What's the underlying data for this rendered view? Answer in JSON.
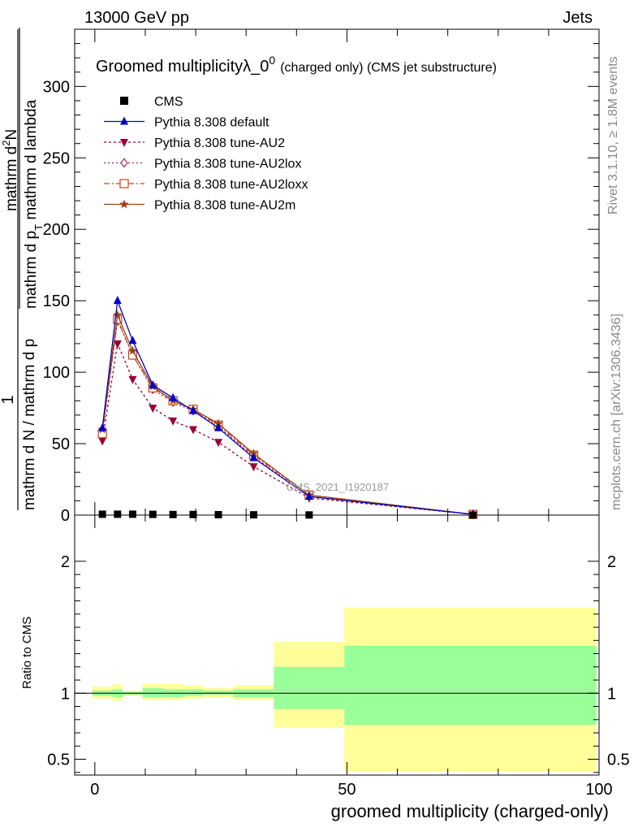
{
  "header": {
    "left": "13000 GeV pp",
    "right": "Jets"
  },
  "side_labels": {
    "rivet": "Rivet 3.1.10, ≥ 1.8M events",
    "mcplots": "mcplots.cern.ch [arXiv:1306.3436]"
  },
  "watermark": "CMS_2021_I1920187",
  "title": {
    "main": "Groomed multiplicityλ_0",
    "sup": "0",
    "extra": "(charged only) (CMS jet substructure)"
  },
  "ylabel_main": {
    "num1": "1",
    "den1": "mathrm d N / mathrm d p",
    "num2": "mathrm d",
    "num2_sup": "2",
    "num2_rest": "N",
    "den2": "mathrm d p",
    "den2_sub": "T",
    "den2_rest": " mathrm d lambda"
  },
  "xlabel": "groomed multiplicity (charged-only)",
  "ratio_ylabel": "Ratio to CMS",
  "colors": {
    "cms": "#000000",
    "default": "#0000cc",
    "au2": "#990033",
    "au2lox": "#aa2255",
    "au2loxx": "#cc4411",
    "au2m": "#994411",
    "band_yellow": "#ffff99",
    "band_green": "#99ff99"
  },
  "chart_data": {
    "type": "line",
    "main": {
      "xlim": [
        -4,
        100
      ],
      "ylim": [
        0,
        340
      ],
      "yticks": [
        0,
        50,
        100,
        150,
        200,
        250,
        300
      ],
      "x": [
        1.5,
        4.5,
        7.5,
        11.5,
        15.5,
        19.5,
        24.5,
        31.5,
        42.5,
        75.0
      ],
      "series": [
        {
          "name": "CMS",
          "key": "cms",
          "marker": "square",
          "dash": "none",
          "values": [
            0.6,
            0.6,
            0.6,
            0.5,
            0.4,
            0.4,
            0.3,
            0.2,
            0.1,
            0.0
          ]
        },
        {
          "name": "Pythia 8.308 default",
          "key": "default",
          "marker": "triangle-up",
          "dash": "none",
          "values": [
            61,
            150,
            122,
            91,
            82,
            73,
            61,
            40,
            13,
            0.5
          ]
        },
        {
          "name": "Pythia 8.308 tune-AU2",
          "key": "au2",
          "marker": "triangle-down",
          "dash": "3,3",
          "values": [
            52,
            120,
            95,
            75,
            66,
            60,
            51,
            34,
            12,
            0.5
          ]
        },
        {
          "name": "Pythia 8.308 tune-AU2lox",
          "key": "au2lox",
          "marker": "diamond-open",
          "dash": "2,3",
          "values": [
            59,
            136,
            112,
            88,
            79,
            73,
            62,
            41,
            13,
            0.5
          ]
        },
        {
          "name": "Pythia 8.308 tune-AU2loxx",
          "key": "au2loxx",
          "marker": "square-open",
          "dash": "7,3,2,3",
          "values": [
            57,
            137,
            112,
            89,
            80,
            74,
            63,
            42,
            14,
            0.5
          ]
        },
        {
          "name": "Pythia 8.308 tune-AU2m",
          "key": "au2m",
          "marker": "star",
          "dash": "none",
          "values": [
            60,
            140,
            115,
            90,
            80,
            74,
            64,
            43,
            14,
            0.5
          ]
        }
      ]
    },
    "ratio": {
      "xlim": [
        -4,
        100
      ],
      "ylim": [
        0.38,
        2.35
      ],
      "yticks": [
        0.5,
        1,
        2
      ],
      "bins": [
        {
          "lo": -0.5,
          "hi": 3.5,
          "yellow": [
            0.96,
            1.05
          ],
          "green": [
            0.98,
            1.02
          ]
        },
        {
          "lo": 3.5,
          "hi": 5.5,
          "yellow": [
            0.94,
            1.07
          ],
          "green": [
            0.97,
            1.03
          ]
        },
        {
          "lo": 5.5,
          "hi": 9.5,
          "yellow": [
            0.98,
            1.02
          ],
          "green": [
            0.99,
            1.01
          ]
        },
        {
          "lo": 9.5,
          "hi": 13.5,
          "yellow": [
            0.95,
            1.07
          ],
          "green": [
            0.97,
            1.04
          ]
        },
        {
          "lo": 13.5,
          "hi": 17.5,
          "yellow": [
            0.95,
            1.07
          ],
          "green": [
            0.97,
            1.03
          ]
        },
        {
          "lo": 17.5,
          "hi": 21.5,
          "yellow": [
            0.96,
            1.06
          ],
          "green": [
            0.98,
            1.03
          ]
        },
        {
          "lo": 21.5,
          "hi": 27.5,
          "yellow": [
            0.97,
            1.04
          ],
          "green": [
            0.99,
            1.02
          ]
        },
        {
          "lo": 27.5,
          "hi": 35.5,
          "yellow": [
            0.95,
            1.06
          ],
          "green": [
            0.97,
            1.03
          ]
        },
        {
          "lo": 35.5,
          "hi": 49.5,
          "yellow": [
            0.74,
            1.39
          ],
          "green": [
            0.88,
            1.2
          ]
        },
        {
          "lo": 49.5,
          "hi": 99.5,
          "yellow": [
            0.41,
            1.65
          ],
          "green": [
            0.76,
            1.36
          ]
        }
      ]
    },
    "xticks": [
      0,
      50,
      100
    ]
  }
}
